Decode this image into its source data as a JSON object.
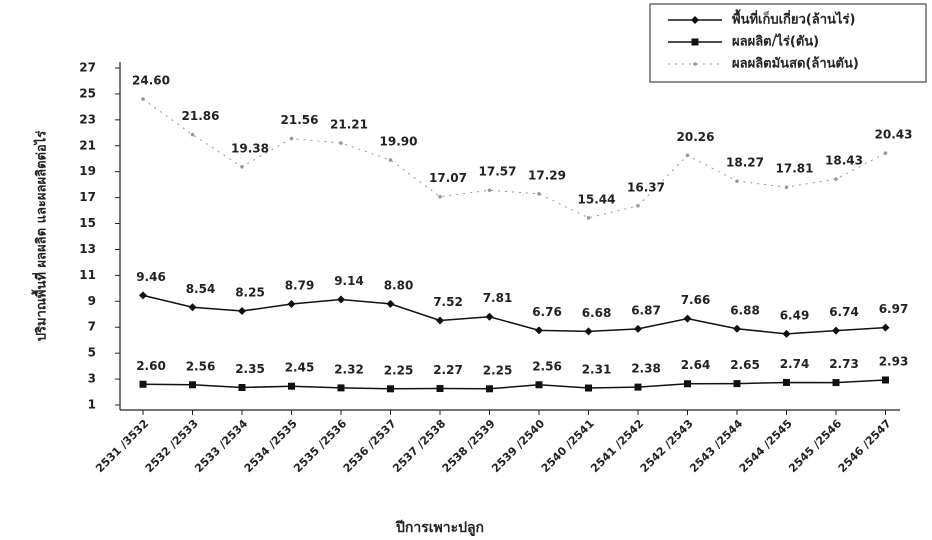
{
  "chart_data": {
    "type": "line",
    "y_label": "ปริมาณพื้นที่ ผลผลิต และผลผลิตต่อไร่",
    "x_label": "ปีการเพาะปลูก",
    "categories": [
      "2531 /3532",
      "2532 /2533",
      "2533 /2534",
      "2534 /2535",
      "2535 /2536",
      "2536 /2537",
      "2537 /2538",
      "2538 /2539",
      "2539 /2540",
      "2540 /2541",
      "2541 /2542",
      "2542 /2543",
      "2543 /2544",
      "2544 /2545",
      "2545 /2546",
      "2546 /2547"
    ],
    "series": [
      {
        "name": "พื้นที่เก็บเกี่ยว(ล้านไร่)",
        "color": "#111111",
        "marker": "diamond",
        "values": [
          9.46,
          8.54,
          8.25,
          8.79,
          9.14,
          8.8,
          7.52,
          7.81,
          6.76,
          6.68,
          6.87,
          7.66,
          6.88,
          6.49,
          6.74,
          6.97
        ],
        "value_labels": [
          "9.46",
          "8.54",
          "8.25",
          "8.79",
          "9.14",
          "8.80",
          "7.52",
          "7.81",
          "6.76",
          "6.68",
          "6.87",
          "7.66",
          "6.88",
          "6.49",
          "6.74",
          "6.97"
        ]
      },
      {
        "name": "ผลผลิต/ไร่(ตัน)",
        "color": "#111111",
        "marker": "square",
        "values": [
          2.6,
          2.56,
          2.35,
          2.45,
          2.32,
          2.25,
          2.27,
          2.25,
          2.56,
          2.31,
          2.38,
          2.64,
          2.65,
          2.74,
          2.73,
          2.93
        ],
        "value_labels": [
          "2.60",
          "2.56",
          "2.35",
          "2.45",
          "2.32",
          "2.25",
          "2.27",
          "2.25",
          "2.56",
          "2.31",
          "2.38",
          "2.64",
          "2.65",
          "2.74",
          "2.73",
          "2.93"
        ]
      },
      {
        "name": "ผลผลิตมันสด(ล้านตัน)",
        "color": "#999999",
        "marker": "dot",
        "values": [
          24.6,
          21.86,
          19.38,
          21.56,
          21.21,
          19.9,
          17.07,
          17.57,
          17.29,
          15.44,
          16.37,
          20.26,
          18.27,
          17.81,
          18.43,
          20.43
        ],
        "value_labels": [
          "24.60",
          "21.86",
          "19.38",
          "21.56",
          "21.21",
          "19.90",
          "17.07",
          "17.57",
          "17.29",
          "15.44",
          "16.37",
          "20.26",
          "18.27",
          "17.81",
          "18.43",
          "20.43"
        ]
      }
    ],
    "ylim": [
      1,
      27
    ],
    "yticks": [
      1,
      3,
      5,
      7,
      9,
      11,
      13,
      15,
      17,
      19,
      21,
      23,
      25,
      27
    ],
    "grid": false,
    "legend": "top-right"
  }
}
